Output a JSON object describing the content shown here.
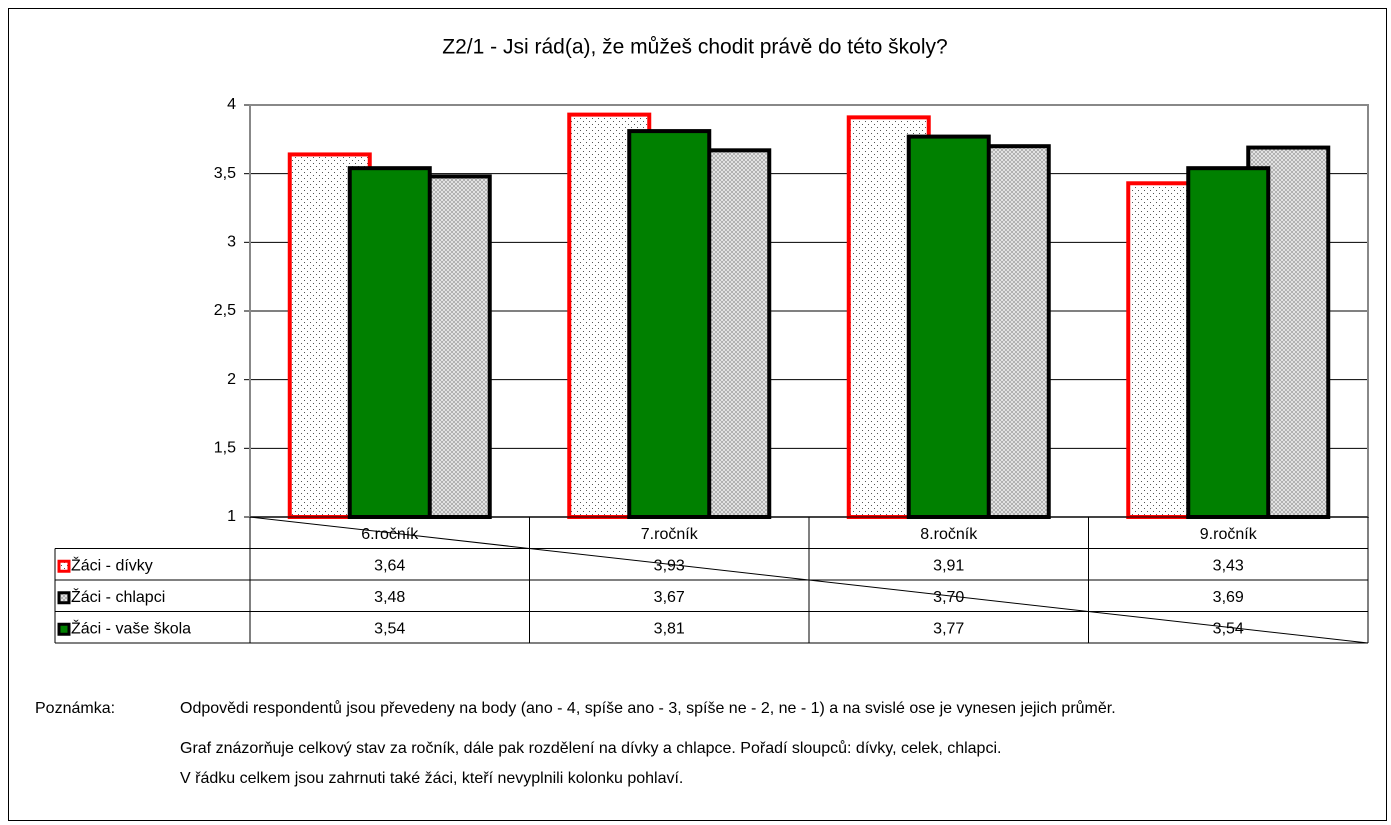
{
  "chart_data": {
    "type": "bar",
    "title": "Z2/1  - Jsi rád(a), že můžeš chodit právě do této školy?",
    "categories": [
      "6.ročník",
      "7.ročník",
      "8.ročník",
      "9.ročník"
    ],
    "series": [
      {
        "name": "Žáci - dívky",
        "color": "#ff0000",
        "values": [
          3.64,
          3.93,
          3.91,
          3.43
        ],
        "value_labels": [
          "3,64",
          "3,93",
          "3,91",
          "3,43"
        ]
      },
      {
        "name": "Žáci - chlapci",
        "color": "#b0b0b0",
        "values": [
          3.48,
          3.67,
          3.7,
          3.69
        ],
        "value_labels": [
          "3,48",
          "3,67",
          "3,70",
          "3,69"
        ]
      },
      {
        "name": "Žáci - vaše škola",
        "color": "#008000",
        "values": [
          3.54,
          3.81,
          3.77,
          3.54
        ],
        "value_labels": [
          "3,54",
          "3,81",
          "3,77",
          "3,54"
        ]
      }
    ],
    "ylim": [
      1,
      4
    ],
    "yticks": [
      1,
      {
        "value": 1.5,
        "label": "1,5"
      },
      2,
      {
        "value": 2.5,
        "label": "2,5"
      },
      3,
      {
        "value": 3.5,
        "label": "3,5"
      },
      4
    ],
    "grid": true
  },
  "notes": {
    "label": "Poznámka:",
    "lines": [
      "Odpovědi respondentů jsou převedeny na body (ano - 4, spíše ano - 3, spíše ne - 2, ne - 1) a na svislé ose je vynesen jejich průměr.",
      "Graf znázorňuje celkový stav za ročník, dále pak rozdělení na dívky a chlapce. Pořadí sloupců: dívky, celek, chlapci.",
      "V řádku celkem jsou zahrnuti také žáci, kteří nevyplnili kolonku pohlaví."
    ]
  }
}
